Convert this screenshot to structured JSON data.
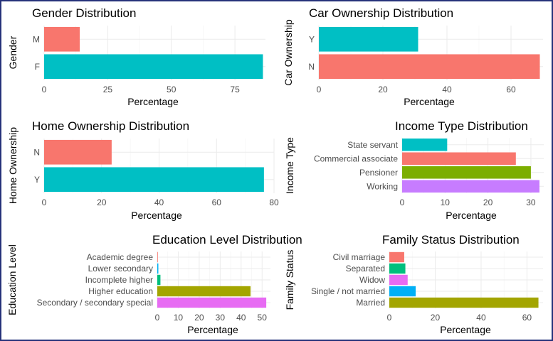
{
  "chart_data": [
    {
      "type": "bar",
      "orientation": "horizontal",
      "title": "Gender Distribution",
      "xlabel": "Percentage",
      "ylabel": "Gender",
      "xlim": [
        0,
        87
      ],
      "xticks": [
        0,
        25,
        50,
        75
      ],
      "grid": true,
      "categories": [
        "F",
        "M"
      ],
      "values": [
        86,
        14
      ],
      "colors": [
        "#00BFC4",
        "#F8766D"
      ]
    },
    {
      "type": "bar",
      "orientation": "horizontal",
      "title": "Car Ownership Distribution",
      "xlabel": "Percentage",
      "ylabel": "Car Ownership",
      "xlim": [
        0,
        70
      ],
      "xticks": [
        0,
        20,
        40,
        60
      ],
      "grid": true,
      "categories": [
        "N",
        "Y"
      ],
      "values": [
        69,
        31
      ],
      "colors": [
        "#F8766D",
        "#00BFC4"
      ]
    },
    {
      "type": "bar",
      "orientation": "horizontal",
      "title": "Home Ownership Distribution",
      "xlabel": "Percentage",
      "ylabel": "Home Ownership",
      "xlim": [
        0,
        80
      ],
      "xticks": [
        0,
        20,
        40,
        60,
        80
      ],
      "grid": true,
      "categories": [
        "Y",
        "N"
      ],
      "values": [
        76.5,
        23.5
      ],
      "colors": [
        "#00BFC4",
        "#F8766D"
      ]
    },
    {
      "type": "bar",
      "orientation": "horizontal",
      "title": "Income Type Distribution",
      "xlabel": "Percentage",
      "ylabel": "Income Type",
      "xlim": [
        0,
        33
      ],
      "xticks": [
        0,
        10,
        20,
        30
      ],
      "grid": true,
      "categories": [
        "Working",
        "Pensioner",
        "Commercial associate",
        "State servant"
      ],
      "values": [
        32,
        30,
        26.5,
        10.5
      ],
      "colors": [
        "#C77CFF",
        "#7CAE00",
        "#F8766D",
        "#00BFC4"
      ]
    },
    {
      "type": "bar",
      "orientation": "horizontal",
      "title": "Education Level Distribution",
      "xlabel": "Percentage",
      "ylabel": "Education Level",
      "xlim": [
        0,
        54
      ],
      "xticks": [
        0,
        10,
        20,
        30,
        40,
        50
      ],
      "grid": true,
      "categories": [
        "Secondary / secondary special",
        "Higher education",
        "Incomplete higher",
        "Lower secondary",
        "Academic degree"
      ],
      "values": [
        52,
        44.5,
        1.5,
        0.5,
        0.2
      ],
      "colors": [
        "#E76BF3",
        "#A3A500",
        "#00BF7D",
        "#00B0F6",
        "#F8766D"
      ]
    },
    {
      "type": "bar",
      "orientation": "horizontal",
      "title": "Family Status Distribution",
      "xlabel": "Percentage",
      "ylabel": "Family Status",
      "xlim": [
        0,
        67
      ],
      "xticks": [
        0,
        20,
        40,
        60
      ],
      "grid": true,
      "categories": [
        "Married",
        "Single / not married",
        "Widow",
        "Separated",
        "Civil marriage"
      ],
      "values": [
        65,
        11.5,
        8,
        7,
        6.5
      ],
      "colors": [
        "#A3A500",
        "#00B0F6",
        "#E76BF3",
        "#00BF7D",
        "#F8766D"
      ]
    }
  ]
}
